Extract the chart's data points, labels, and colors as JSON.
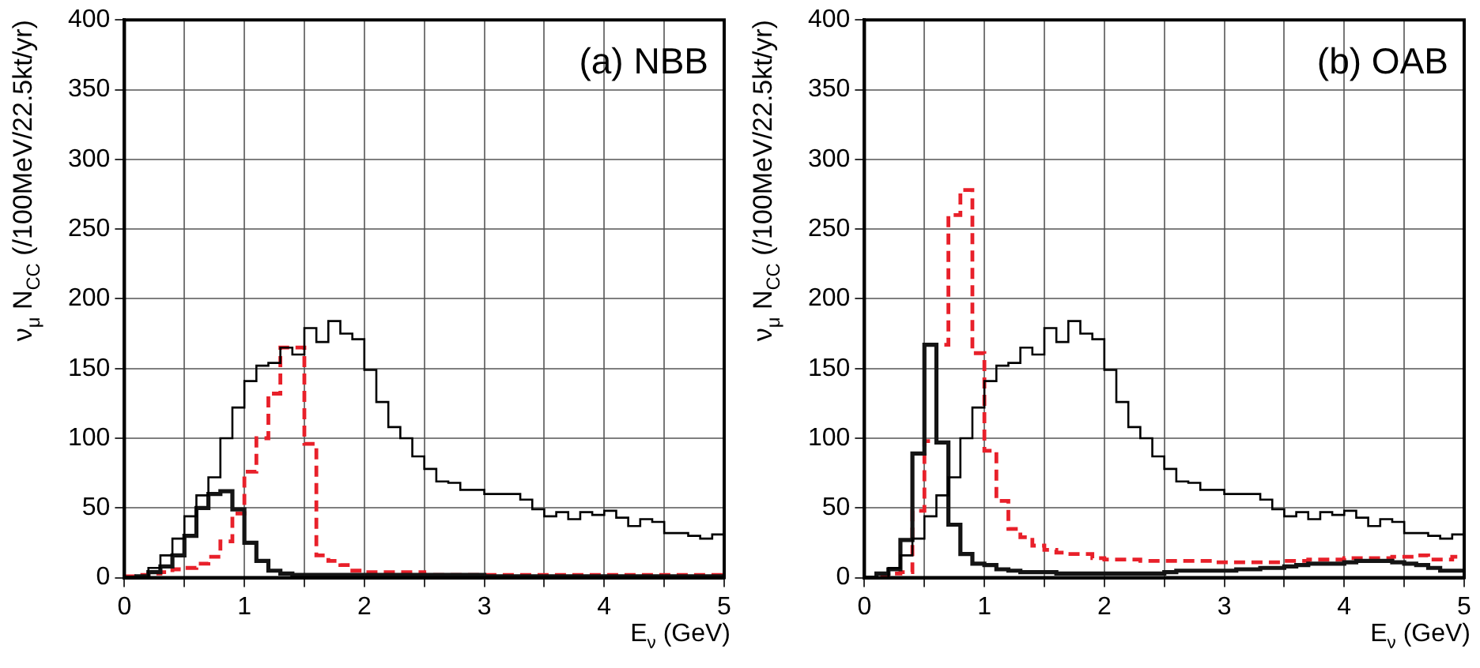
{
  "chart_data": [
    {
      "type": "histogram",
      "xlabel": "E$_{ν}$ (GeV)",
      "ylabel": "ν$_{μ}$ N$_{CC}$ (/100MeV/22.5kt/yr)",
      "annotations": [
        "(a) NBB"
      ],
      "bins": [
        0,
        0.1,
        0.2,
        0.3,
        0.4,
        0.5,
        0.6,
        0.7,
        0.8,
        0.9,
        1,
        1.1,
        1.2,
        1.3,
        1.4,
        1.5,
        1.6,
        1.7,
        1.8,
        1.9,
        2,
        2.1,
        2.2,
        2.3,
        2.4,
        2.5,
        2.6,
        2.7,
        2.8,
        2.9,
        3,
        3.1,
        3.2,
        3.3,
        3.4,
        3.5,
        3.6,
        3.7,
        3.8,
        3.9,
        4,
        4.1,
        4.2,
        4.3,
        4.4,
        4.5,
        4.6,
        4.7,
        4.8,
        4.9,
        5
      ],
      "series": [
        {
          "color": "#000000",
          "line_style": "solid",
          "values": [
            0,
            0,
            7,
            16,
            28,
            44,
            59,
            72,
            100,
            122,
            141,
            152,
            154,
            165,
            160,
            179,
            169,
            184,
            175,
            171,
            149,
            126,
            108,
            100,
            87,
            78,
            69,
            68,
            63,
            63,
            60,
            60,
            60,
            56,
            49,
            44,
            47,
            42,
            47,
            45,
            48,
            43,
            37,
            42,
            40,
            32,
            32,
            30,
            28,
            31
          ]
        },
        {
          "color": "#141414",
          "line_style": "solid",
          "values": [
            0,
            1,
            4,
            8,
            16,
            30,
            50,
            60,
            62,
            49,
            25,
            12,
            5,
            3,
            2,
            2,
            2,
            2,
            2,
            2,
            2,
            2,
            2,
            2,
            2,
            2,
            2,
            2,
            2,
            2,
            1,
            1,
            1,
            1,
            1,
            1,
            1,
            1,
            1,
            1,
            1,
            1,
            1,
            1,
            1,
            1,
            1,
            1,
            1,
            1
          ]
        },
        {
          "color": "#e8202a",
          "line_style": "dashed",
          "values": [
            1,
            2,
            3,
            4,
            6,
            7,
            10,
            15,
            26,
            46,
            76,
            100,
            132,
            165,
            165,
            96,
            16,
            12,
            9,
            5,
            4,
            4,
            4,
            4,
            4,
            2,
            2,
            2,
            2,
            2,
            2,
            2,
            2,
            2,
            2,
            2,
            2,
            2,
            2,
            2,
            2,
            2,
            2,
            2,
            2,
            2,
            2,
            2,
            2,
            2
          ]
        }
      ],
      "xlim": [
        0,
        5
      ],
      "xticks": [
        0,
        {
          "value": 0.5,
          "label": null
        },
        1,
        {
          "value": 1.5,
          "label": null
        },
        2,
        {
          "value": 2.5,
          "label": null
        },
        3,
        {
          "value": 3.5,
          "label": null
        },
        4,
        {
          "value": 4.5,
          "label": null
        },
        5
      ],
      "ylim": [
        0,
        400
      ],
      "yticks": [
        0,
        50,
        100,
        150,
        200,
        250,
        300,
        350,
        400
      ],
      "grid": true,
      "legend": false
    },
    {
      "type": "histogram",
      "xlabel": "E$_{ν}$ (GeV)",
      "ylabel": "ν$_{μ}$ N$_{CC}$ (/100MeV/22.5kt/yr)",
      "annotations": [
        "(b) OAB"
      ],
      "bins": [
        0,
        0.1,
        0.2,
        0.3,
        0.4,
        0.5,
        0.6,
        0.7,
        0.8,
        0.9,
        1,
        1.1,
        1.2,
        1.3,
        1.4,
        1.5,
        1.6,
        1.7,
        1.8,
        1.9,
        2,
        2.1,
        2.2,
        2.3,
        2.4,
        2.5,
        2.6,
        2.7,
        2.8,
        2.9,
        3,
        3.1,
        3.2,
        3.3,
        3.4,
        3.5,
        3.6,
        3.7,
        3.8,
        3.9,
        4,
        4.1,
        4.2,
        4.3,
        4.4,
        4.5,
        4.6,
        4.7,
        4.8,
        4.9,
        5
      ],
      "series": [
        {
          "color": "#000000",
          "line_style": "solid",
          "values": [
            0,
            0,
            7,
            16,
            28,
            44,
            59,
            72,
            100,
            122,
            141,
            152,
            154,
            165,
            160,
            179,
            169,
            184,
            175,
            171,
            149,
            126,
            108,
            100,
            87,
            78,
            69,
            68,
            63,
            63,
            60,
            60,
            60,
            56,
            49,
            44,
            47,
            42,
            47,
            45,
            48,
            43,
            37,
            42,
            40,
            32,
            32,
            30,
            28,
            31
          ]
        },
        {
          "color": "#141414",
          "line_style": "solid",
          "values": [
            0,
            3,
            6,
            27,
            89,
            167,
            97,
            38,
            17,
            10,
            9,
            6,
            5,
            4,
            4,
            4,
            3,
            3,
            3,
            3,
            3,
            3,
            3,
            3,
            3,
            4,
            5,
            5,
            5,
            5,
            5,
            6,
            6,
            7,
            7,
            8,
            9,
            10,
            10,
            10,
            11,
            12,
            12,
            12,
            11,
            10,
            9,
            7,
            5,
            5
          ]
        },
        {
          "color": "#e8202a",
          "line_style": "dashed",
          "values": [
            0,
            1,
            3,
            4,
            48,
            98,
            167,
            260,
            278,
            161,
            91,
            55,
            35,
            29,
            23,
            20,
            18,
            17,
            17,
            14,
            13,
            13,
            13,
            12,
            12,
            12,
            12,
            12,
            12,
            11,
            11,
            11,
            11,
            11,
            11,
            12,
            12,
            13,
            13,
            13,
            14,
            14,
            14,
            14,
            15,
            15,
            16,
            13,
            13,
            15
          ]
        }
      ],
      "xlim": [
        0,
        5
      ],
      "xticks": [
        0,
        {
          "value": 0.5,
          "label": null
        },
        1,
        {
          "value": 1.5,
          "label": null
        },
        2,
        {
          "value": 2.5,
          "label": null
        },
        3,
        {
          "value": 3.5,
          "label": null
        },
        4,
        {
          "value": 4.5,
          "label": null
        },
        5
      ],
      "ylim": [
        0,
        400
      ],
      "yticks": [
        0,
        50,
        100,
        150,
        200,
        250,
        300,
        350,
        400
      ],
      "grid": true,
      "legend": false
    }
  ]
}
